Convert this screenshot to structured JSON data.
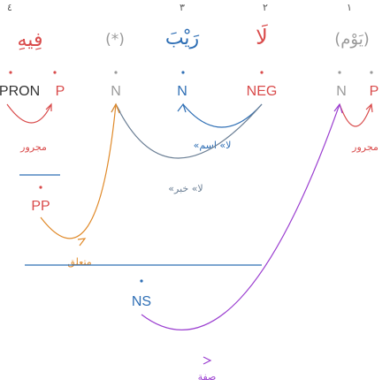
{
  "colors": {
    "red": "#d94b4b",
    "blue": "#2f6fb5",
    "gray": "#9a9a9a",
    "orange": "#e08a2a",
    "purple": "#9b3fd0",
    "slate": "#6b7f95",
    "dark": "#333333"
  },
  "tokens": [
    {
      "word": "فِيهِ",
      "tags": [
        "PRON",
        "P"
      ],
      "word_color": "red"
    },
    {
      "word": "(*)",
      "tags": [
        "N"
      ],
      "word_color": "gray"
    },
    {
      "word": "رَيْبَ",
      "tags": [
        "N"
      ],
      "word_color": "blue"
    },
    {
      "word": "لَا",
      "tags": [
        "NEG"
      ],
      "word_color": "red"
    },
    {
      "word": "(يَوْم)",
      "tags": [
        "N",
        "P"
      ],
      "word_color": "gray"
    }
  ],
  "phrase_tags": {
    "pp": "PP",
    "ns": "NS"
  },
  "relations": {
    "majrur_left": "مجرور",
    "majrur_right": "مجرور",
    "ism_la": "«لا» اسم",
    "khabar_la": "«لا» خبر",
    "mutaalliq": "متعلق",
    "sifa": "صفة"
  },
  "numerals": {
    "n1": "٤",
    "n2": "٣",
    "n3": "٢",
    "n4": "١"
  }
}
